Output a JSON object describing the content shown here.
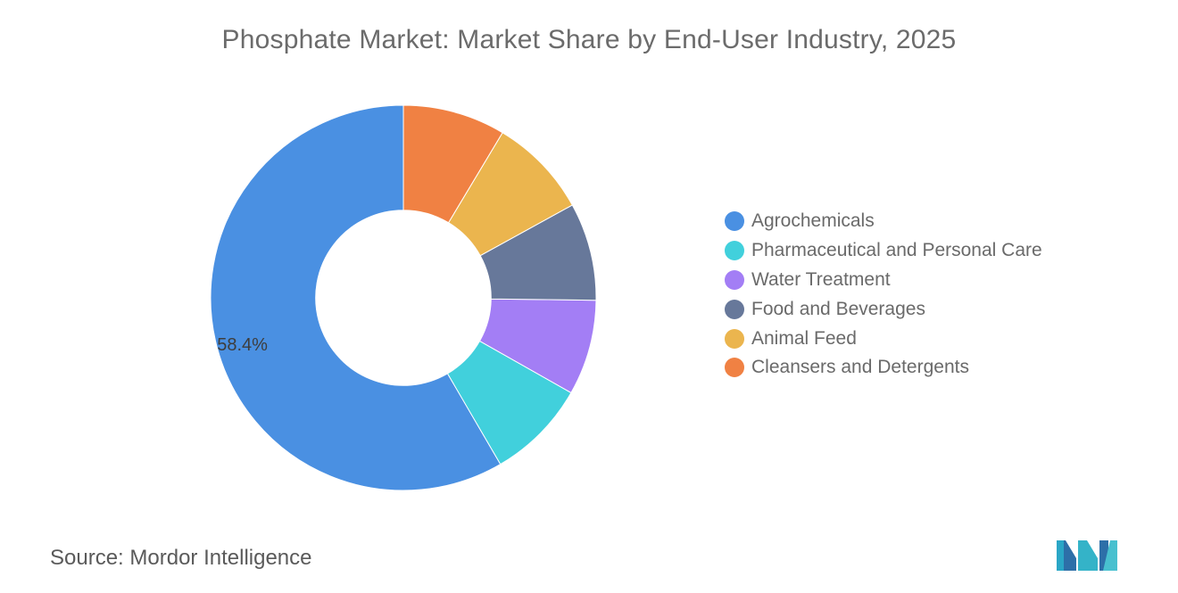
{
  "chart_data": {
    "type": "pie",
    "title": "Phosphate Market: Market Share by End-User Industry, 2025",
    "series": [
      {
        "name": "Agrochemicals",
        "value": 58.4,
        "color": "#4a90e2",
        "label": "58.4%"
      },
      {
        "name": "Pharmaceutical and Personal Care",
        "value": 8.4,
        "color": "#41d0dc",
        "label": ""
      },
      {
        "name": "Water Treatment",
        "value": 8.0,
        "color": "#a37ef5",
        "label": ""
      },
      {
        "name": "Food and Beverages",
        "value": 8.2,
        "color": "#67789a",
        "label": ""
      },
      {
        "name": "Animal Feed",
        "value": 8.4,
        "color": "#ebb54e",
        "label": ""
      },
      {
        "name": "Cleansers and Detergents",
        "value": 8.6,
        "color": "#f08143",
        "label": ""
      }
    ],
    "legend_position": "right",
    "inner_radius_ratio": 0.455
  },
  "source": {
    "key": "Source:",
    "value": "Mordor Intelligence"
  }
}
